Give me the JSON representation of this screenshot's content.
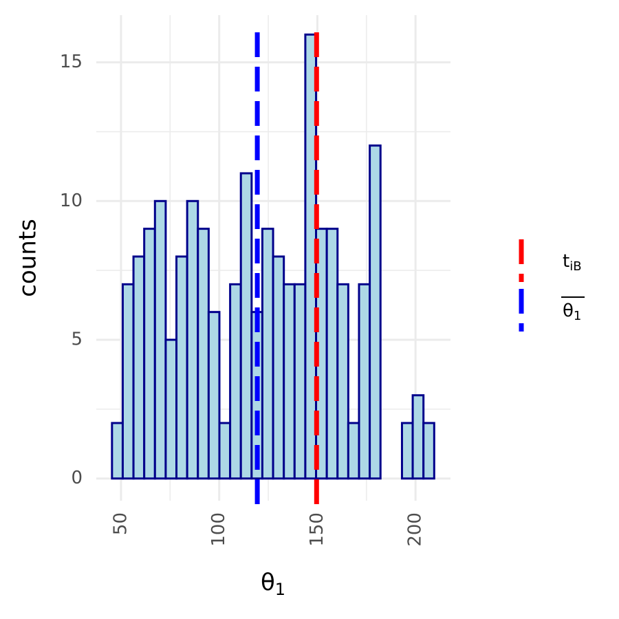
{
  "chart_data": {
    "type": "histogram",
    "xlabel": {
      "text": "θ",
      "subscript": "1"
    },
    "ylabel": "counts",
    "bins": [
      45.4,
      50.87,
      56.34,
      61.81,
      67.28,
      72.75,
      78.22,
      83.69,
      89.16,
      94.63,
      100.1,
      105.57,
      111.04,
      116.51,
      121.98,
      127.45,
      132.92,
      138.39,
      143.86,
      149.33,
      154.8,
      160.27,
      165.74,
      171.21,
      176.68,
      182.15,
      187.62,
      193.09,
      198.56,
      204.03,
      209.5
    ],
    "counts": [
      2,
      7,
      8,
      9,
      10,
      5,
      8,
      10,
      9,
      6,
      2,
      7,
      11,
      6,
      9,
      8,
      7,
      7,
      16,
      9,
      9,
      7,
      2,
      7,
      12,
      0,
      0,
      2,
      3,
      2
    ],
    "fill": "#add8e6",
    "edgecolor": "#00008b",
    "xlim": [
      37.4,
      217.8
    ],
    "ylim": [
      -0.8,
      16.7
    ],
    "xticks": [
      50,
      100,
      150,
      200
    ],
    "yticks": [
      0,
      5,
      10,
      15
    ],
    "xminor": [
      75,
      125,
      175
    ],
    "yminor": [
      2.5,
      7.5,
      12.5
    ],
    "grid": true,
    "vlines": [
      {
        "name": "t",
        "subscript": "iB",
        "color": "#ff0000",
        "x": 149.6
      },
      {
        "name": "θ",
        "subscript": "1",
        "overline": true,
        "color": "#0000ff",
        "x": 119.4
      }
    ],
    "legend": "right"
  }
}
